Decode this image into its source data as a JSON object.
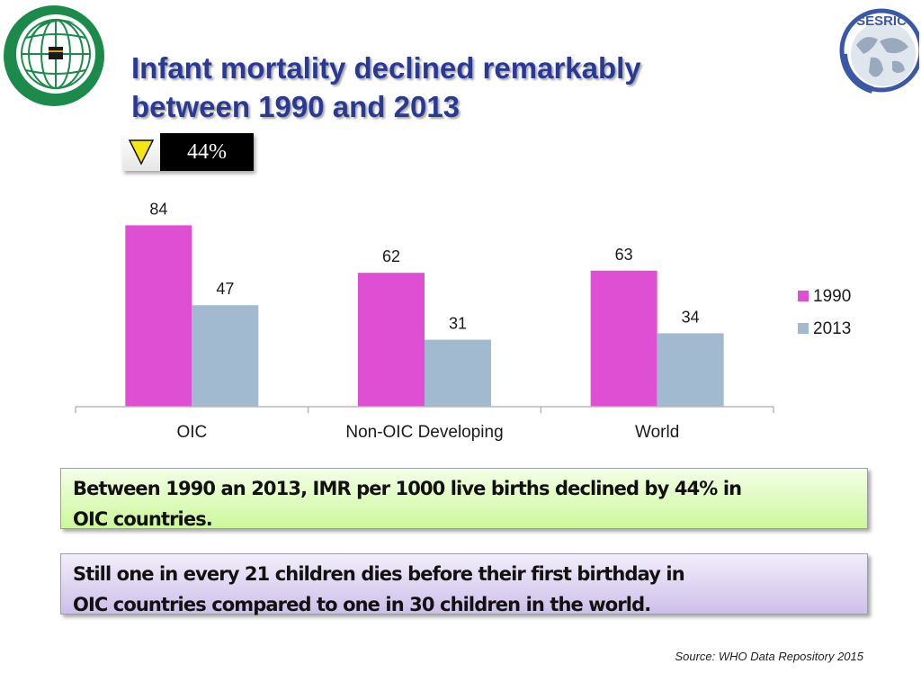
{
  "title": {
    "line1": "Infant mortality declined remarkably",
    "line2": "between 1990 and 2013"
  },
  "badge": {
    "icon": "down-triangle-icon",
    "value": "44%"
  },
  "logos": {
    "left": "oic-globe-logo",
    "right_text": "SESRIC"
  },
  "colors": {
    "title": "#2a3a92",
    "series_1990": "#de4fd3",
    "series_2013": "#a2bacf",
    "badge_triangle": "#f5e611",
    "callout_green": "#cdf79a",
    "callout_purple": "#cdbfe9"
  },
  "chart_data": {
    "type": "bar",
    "categories": [
      "OIC",
      "Non-OIC Developing",
      "World"
    ],
    "series": [
      {
        "name": "1990",
        "values": [
          84,
          62,
          63
        ]
      },
      {
        "name": "2013",
        "values": [
          47,
          31,
          34
        ]
      }
    ],
    "data_labels": [
      [
        "84",
        "62",
        "63"
      ],
      [
        "47",
        "31",
        "34"
      ]
    ],
    "title": "",
    "xlabel": "",
    "ylabel": "",
    "ylim": [
      0,
      110
    ],
    "grid": false,
    "legend": "right"
  },
  "callouts": {
    "green": {
      "line1": "Between 1990 an 2013, IMR per 1000 live births declined by 44% in",
      "line2": "OIC  countries."
    },
    "purple": {
      "line1": "Still one in every 21 children dies before their first birthday in",
      "line2": "OIC  countries compared to one in 30 children in the world."
    }
  },
  "source": "Source: WHO Data Repository 2015"
}
